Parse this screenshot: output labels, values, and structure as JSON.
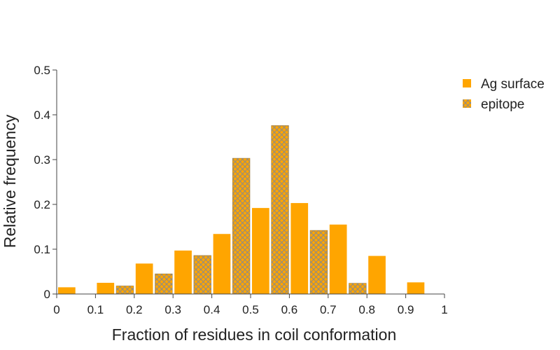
{
  "chart_data": {
    "type": "bar",
    "title": "",
    "xlabel": "Fraction of residues in coil conformation",
    "ylabel": "Relative frequency",
    "xlim": [
      0,
      1
    ],
    "ylim": [
      0,
      0.5
    ],
    "xticks": [
      "0",
      "0.1",
      "0.2",
      "0.3",
      "0.4",
      "0.5",
      "0.6",
      "0.7",
      "0.8",
      "0.9",
      "1"
    ],
    "yticks": [
      "0",
      "0.1",
      "0.2",
      "0.3",
      "0.4",
      "0.5"
    ],
    "bin_starts": [
      0,
      0.1,
      0.2,
      0.3,
      0.4,
      0.5,
      0.6,
      0.7,
      0.8,
      0.9
    ],
    "bin_width": 0.1,
    "grid": false,
    "legend_position": "top-right",
    "series": [
      {
        "name": "Ag surface",
        "color": "#ffa500",
        "pattern": "solid",
        "values": [
          0.015,
          0.025,
          0.068,
          0.097,
          0.134,
          0.192,
          0.203,
          0.155,
          0.085,
          0.026
        ]
      },
      {
        "name": "epitope",
        "color": "#ffa500",
        "pattern": "crosshatch",
        "hatch_color": "#8a8a8a",
        "values": [
          0,
          0.018,
          0.045,
          0.086,
          0.303,
          0.376,
          0.142,
          0.024,
          0,
          0
        ]
      }
    ]
  }
}
